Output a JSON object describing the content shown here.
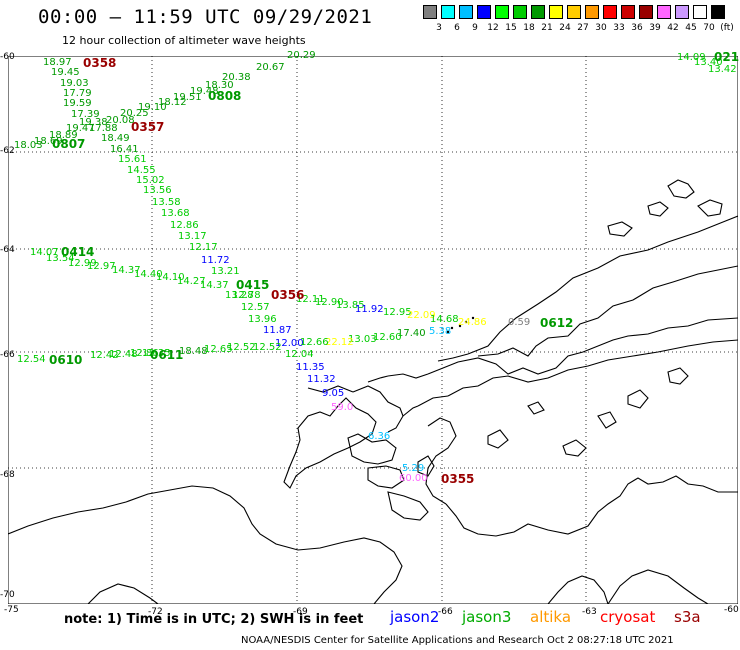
{
  "header": {
    "title": "00:00 – 11:59 UTC 09/29/2021",
    "subtitle": "12 hour collection of altimeter wave heights"
  },
  "colorbar": {
    "colors": [
      "#7f7f7f",
      "#00ffff",
      "#00bfff",
      "#0000ff",
      "#00ff00",
      "#00cc00",
      "#009900",
      "#ffff00",
      "#ffcc00",
      "#ff9900",
      "#ff0000",
      "#cc0000",
      "#990000",
      "#ff66ff",
      "#cc99ff",
      "#ffffff",
      "#000000"
    ],
    "labels": [
      "3",
      "6",
      "9",
      "12",
      "15",
      "18",
      "21",
      "24",
      "27",
      "30",
      "33",
      "36",
      "39",
      "42",
      "45",
      "70",
      "(ft)"
    ]
  },
  "axes": {
    "lat_labels": [
      "-60",
      "-62",
      "-64",
      "-66",
      "-68",
      "-70"
    ],
    "lon_labels": [
      "-75",
      "-72",
      "-69",
      "-66",
      "-63",
      "-60"
    ]
  },
  "tracks": {
    "values": [
      {
        "t": "18.97",
        "c": "#009900"
      },
      {
        "t": "19.45",
        "c": "#009900"
      },
      {
        "t": "19.03",
        "c": "#009900"
      },
      {
        "t": "17.79",
        "c": "#009900"
      },
      {
        "t": "19.59",
        "c": "#009900"
      },
      {
        "t": "17.39",
        "c": "#009900"
      },
      {
        "t": "19.38",
        "c": "#009900"
      },
      {
        "t": "19.47",
        "c": "#009900"
      },
      {
        "t": "17.88",
        "c": "#009900"
      },
      {
        "t": "18.89",
        "c": "#009900"
      },
      {
        "t": "18.69",
        "c": "#009900"
      },
      {
        "t": "18.03",
        "c": "#009900"
      },
      {
        "t": "18.49",
        "c": "#009900"
      },
      {
        "t": "16.41",
        "c": "#009900"
      },
      {
        "t": "15.61",
        "c": "#00cc00"
      },
      {
        "t": "14.55",
        "c": "#00cc00"
      },
      {
        "t": "15.02",
        "c": "#00cc00"
      },
      {
        "t": "13.56",
        "c": "#00cc00"
      },
      {
        "t": "13.58",
        "c": "#00cc00"
      },
      {
        "t": "13.68",
        "c": "#00cc00"
      },
      {
        "t": "12.86",
        "c": "#00cc00"
      },
      {
        "t": "13.17",
        "c": "#00cc00"
      },
      {
        "t": "12.17",
        "c": "#00cc00"
      },
      {
        "t": "11.72",
        "c": "#0000ff"
      },
      {
        "t": "13.21",
        "c": "#00cc00"
      },
      {
        "t": "12.78",
        "c": "#00cc00"
      },
      {
        "t": "12.57",
        "c": "#00cc00"
      },
      {
        "t": "13.96",
        "c": "#00cc00"
      },
      {
        "t": "11.87",
        "c": "#0000ff"
      },
      {
        "t": "12.00",
        "c": "#0000ff"
      },
      {
        "t": "12.04",
        "c": "#00cc00"
      },
      {
        "t": "11.35",
        "c": "#0000ff"
      },
      {
        "t": "11.32",
        "c": "#0000ff"
      },
      {
        "t": "9.05",
        "c": "#0000ff"
      },
      {
        "t": "59.0",
        "c": "#ff66ff"
      },
      {
        "t": "6.36",
        "c": "#00bfff"
      },
      {
        "t": "5.29",
        "c": "#00bfff"
      },
      {
        "t": "60.00",
        "c": "#ff66ff"
      },
      {
        "t": "20.29",
        "c": "#009900"
      },
      {
        "t": "20.67",
        "c": "#009900"
      },
      {
        "t": "20.38",
        "c": "#009900"
      },
      {
        "t": "18.30",
        "c": "#009900"
      },
      {
        "t": "19.48",
        "c": "#009900"
      },
      {
        "t": "19.51",
        "c": "#009900"
      },
      {
        "t": "18.12",
        "c": "#009900"
      },
      {
        "t": "19.10",
        "c": "#009900"
      },
      {
        "t": "20.25",
        "c": "#009900"
      },
      {
        "t": "20.08",
        "c": "#009900"
      },
      {
        "t": "14.07",
        "c": "#00cc00"
      },
      {
        "t": "13.54",
        "c": "#00cc00"
      },
      {
        "t": "12.99",
        "c": "#00cc00"
      },
      {
        "t": "12.97",
        "c": "#00cc00"
      },
      {
        "t": "14.37",
        "c": "#00cc00"
      },
      {
        "t": "14.40",
        "c": "#00cc00"
      },
      {
        "t": "14.10",
        "c": "#00cc00"
      },
      {
        "t": "14.27",
        "c": "#00cc00"
      },
      {
        "t": "14.37",
        "c": "#00cc00"
      },
      {
        "t": "13.28",
        "c": "#00cc00"
      },
      {
        "t": "12.11",
        "c": "#00cc00"
      },
      {
        "t": "12.90",
        "c": "#00cc00"
      },
      {
        "t": "13.85",
        "c": "#00cc00"
      },
      {
        "t": "11.92",
        "c": "#0000ff"
      },
      {
        "t": "12.95",
        "c": "#00cc00"
      },
      {
        "t": "22.09",
        "c": "#ffff00"
      },
      {
        "t": "14.68",
        "c": "#00cc00"
      },
      {
        "t": "24.86",
        "c": "#ffff00"
      },
      {
        "t": "17.40",
        "c": "#009900"
      },
      {
        "t": "5.38",
        "c": "#00bfff"
      },
      {
        "t": "13.03",
        "c": "#00cc00"
      },
      {
        "t": "12.60",
        "c": "#00cc00"
      },
      {
        "t": "22.12",
        "c": "#ffff00"
      },
      {
        "t": "12.66",
        "c": "#00cc00"
      },
      {
        "t": "0.59",
        "c": "#7f7f7f"
      },
      {
        "t": "12.54",
        "c": "#00cc00"
      },
      {
        "t": "12.42",
        "c": "#00cc00"
      },
      {
        "t": "12.48",
        "c": "#00cc00"
      },
      {
        "t": "12.86",
        "c": "#00cc00"
      },
      {
        "t": "12.35",
        "c": "#00cc00"
      },
      {
        "t": "18.48",
        "c": "#009900"
      },
      {
        "t": "12.65",
        "c": "#00cc00"
      },
      {
        "t": "12.52",
        "c": "#00cc00"
      },
      {
        "t": "12.52",
        "c": "#00cc00"
      },
      {
        "t": "14.09",
        "c": "#00cc00"
      },
      {
        "t": "13.40",
        "c": "#00cc00"
      },
      {
        "t": "13.42",
        "c": "#00cc00"
      }
    ],
    "passes": [
      {
        "t": "0358",
        "c": "#990000"
      },
      {
        "t": "0808",
        "c": "#009900"
      },
      {
        "t": "0357",
        "c": "#990000"
      },
      {
        "t": "0807",
        "c": "#009900"
      },
      {
        "t": "0414",
        "c": "#009900"
      },
      {
        "t": "0415",
        "c": "#009900"
      },
      {
        "t": "0356",
        "c": "#990000"
      },
      {
        "t": "0612",
        "c": "#009900"
      },
      {
        "t": "0610",
        "c": "#009900"
      },
      {
        "t": "0611",
        "c": "#009900"
      },
      {
        "t": "0355",
        "c": "#990000"
      },
      {
        "t": "021",
        "c": "#009900"
      }
    ]
  },
  "footer": {
    "note": "note:  1) Time is in UTC;  2) SWH is in feet",
    "sats": [
      {
        "t": "jason2",
        "c": "#0000ff"
      },
      {
        "t": "jason3",
        "c": "#00aa00"
      },
      {
        "t": "altika",
        "c": "#ff9900"
      },
      {
        "t": "cryosat",
        "c": "#ff0000"
      },
      {
        "t": "s3a",
        "c": "#990000"
      }
    ],
    "credit": "NOAA/NESDIS Center for Satellite Applications and Research    Oct  2 08:27:18 UTC 2021"
  }
}
